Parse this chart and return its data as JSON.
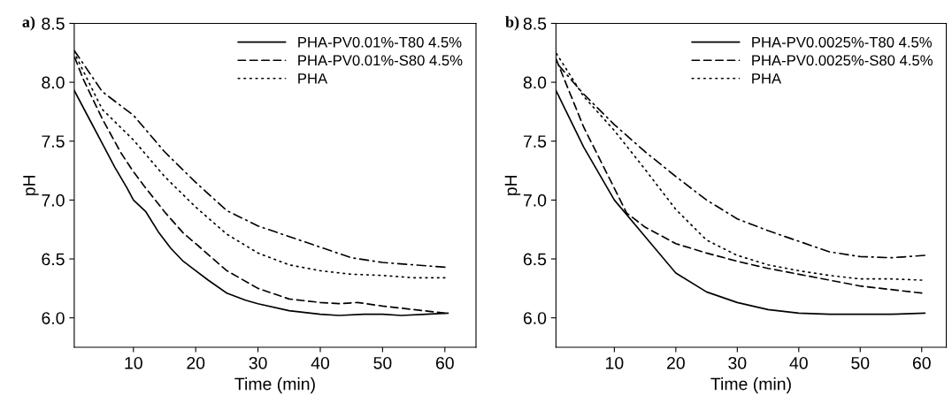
{
  "chart_data": [
    {
      "type": "line",
      "annotations": [
        "a)"
      ],
      "xlabel": "Time (min)",
      "ylabel": "pH",
      "xlim": [
        0.5,
        65
      ],
      "xticks": [
        10,
        20,
        30,
        40,
        50,
        60
      ],
      "ylim": [
        5.75,
        8.5
      ],
      "yticks": [
        {
          "value": 6.0,
          "label": "6.0"
        },
        {
          "value": 6.5,
          "label": "6.5"
        },
        {
          "value": 7.0,
          "label": "7.0"
        },
        {
          "value": 7.5,
          "label": "7.5"
        },
        {
          "value": 8.0,
          "label": "8.0"
        },
        {
          "value": 8.5,
          "label": "8.5"
        }
      ],
      "grid": false,
      "legend": "top right",
      "marker": "none",
      "series": [
        {
          "name": "PHA-PV0.01%-T80 4.5%",
          "color": "#000000",
          "line_style": "solid",
          "x": [
            0.5,
            3,
            5,
            7,
            9,
            10,
            12,
            14,
            16,
            18,
            20,
            22,
            25,
            28,
            30,
            35,
            40,
            43,
            47,
            50,
            53,
            57,
            60.5
          ],
          "values": [
            7.93,
            7.68,
            7.48,
            7.28,
            7.1,
            7.0,
            6.9,
            6.73,
            6.59,
            6.48,
            6.4,
            6.32,
            6.21,
            6.15,
            6.12,
            6.06,
            6.03,
            6.02,
            6.03,
            6.03,
            6.02,
            6.03,
            6.04
          ]
        },
        {
          "name": "PHA-PV0.01%-S80 4.5%",
          "color": "#000000",
          "line_style": "dashed",
          "x": [
            0.5,
            2,
            5,
            8,
            10,
            12,
            15,
            18,
            20,
            25,
            30,
            35,
            40,
            43,
            46,
            50,
            55,
            60
          ],
          "values": [
            8.22,
            8.02,
            7.69,
            7.4,
            7.24,
            7.1,
            6.9,
            6.72,
            6.63,
            6.4,
            6.25,
            6.16,
            6.13,
            6.12,
            6.13,
            6.1,
            6.07,
            6.04
          ]
        },
        {
          "name": "PHA",
          "color": "#000000",
          "line_style": "dotted",
          "x": [
            0.5,
            5,
            10,
            15,
            20,
            25,
            30,
            35,
            40,
            45,
            50,
            55,
            60
          ],
          "values": [
            8.25,
            7.77,
            7.51,
            7.2,
            6.94,
            6.71,
            6.55,
            6.45,
            6.4,
            6.37,
            6.36,
            6.34,
            6.34
          ]
        },
        {
          "color": "#000000",
          "line_style": "dashdot",
          "x": [
            0.5,
            5,
            10,
            15,
            20,
            25,
            30,
            35,
            40,
            45,
            50,
            55,
            60
          ],
          "values": [
            8.27,
            7.92,
            7.72,
            7.41,
            7.15,
            6.91,
            6.78,
            6.69,
            6.6,
            6.51,
            6.47,
            6.45,
            6.43
          ]
        }
      ]
    },
    {
      "type": "line",
      "annotations": [
        "b)"
      ],
      "xlabel": "Time (min)",
      "ylabel": "pH",
      "xlim": [
        0.5,
        64
      ],
      "xticks": [
        10,
        20,
        30,
        40,
        50,
        60
      ],
      "ylim": [
        5.75,
        8.5
      ],
      "yticks": [
        {
          "value": 6.0,
          "label": "6.0"
        },
        {
          "value": 6.5,
          "label": "6.5"
        },
        {
          "value": 7.0,
          "label": "7.0"
        },
        {
          "value": 7.5,
          "label": "7.5"
        },
        {
          "value": 8.0,
          "label": "8.0"
        },
        {
          "value": 8.5,
          "label": "8.5"
        }
      ],
      "grid": false,
      "legend": "top right",
      "marker": "none",
      "series": [
        {
          "name": "PHA-PV0.0025%-T80 4.5%",
          "color": "#000000",
          "line_style": "solid",
          "x": [
            0.5,
            5,
            10,
            15,
            20,
            25,
            30,
            35,
            40,
            45,
            50,
            55,
            60.5
          ],
          "values": [
            7.93,
            7.45,
            7.0,
            6.69,
            6.38,
            6.22,
            6.13,
            6.07,
            6.04,
            6.03,
            6.03,
            6.03,
            6.04
          ]
        },
        {
          "name": "PHA-PV0.0025%-S80 4.5%",
          "color": "#000000",
          "line_style": "dashed",
          "x": [
            0.5,
            5,
            10,
            12,
            15,
            20,
            25,
            30,
            35,
            40,
            45,
            50,
            55,
            60
          ],
          "values": [
            8.2,
            7.62,
            7.1,
            6.89,
            6.77,
            6.63,
            6.55,
            6.48,
            6.42,
            6.37,
            6.32,
            6.27,
            6.24,
            6.21
          ]
        },
        {
          "name": "PHA",
          "color": "#000000",
          "line_style": "dotted",
          "x": [
            0.5,
            5,
            10,
            15,
            20,
            25,
            30,
            35,
            40,
            45,
            50,
            55,
            60
          ],
          "values": [
            8.25,
            7.88,
            7.59,
            7.26,
            6.92,
            6.66,
            6.53,
            6.45,
            6.4,
            6.36,
            6.33,
            6.33,
            6.32
          ]
        },
        {
          "color": "#000000",
          "line_style": "dashdot",
          "x": [
            0.5,
            5,
            10,
            15,
            20,
            25,
            30,
            35,
            40,
            45,
            50,
            55,
            60.5
          ],
          "values": [
            8.17,
            7.9,
            7.64,
            7.41,
            7.2,
            7.0,
            6.84,
            6.74,
            6.65,
            6.56,
            6.52,
            6.51,
            6.53
          ]
        }
      ]
    }
  ]
}
